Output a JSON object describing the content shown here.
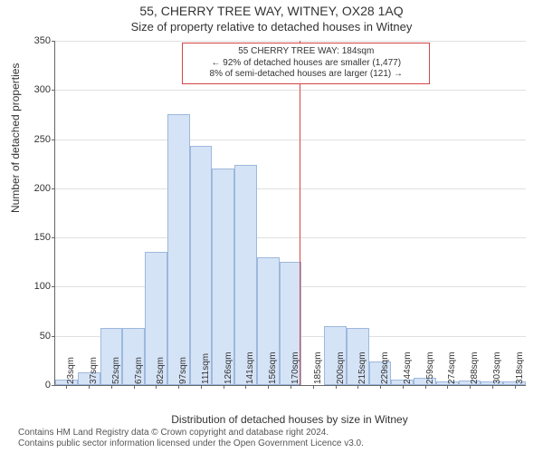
{
  "title_main": "55, CHERRY TREE WAY, WITNEY, OX28 1AQ",
  "title_sub": "Size of property relative to detached houses in Witney",
  "chart": {
    "type": "histogram",
    "ylabel": "Number of detached properties",
    "xlabel": "Distribution of detached houses by size in Witney",
    "ylim": [
      0,
      350
    ],
    "ytick_step": 50,
    "background_color": "#ffffff",
    "grid_color": "#e0e0e0",
    "axis_color": "#666666",
    "bar_fill": "#d5e3f6",
    "bar_border": "#9db8dd",
    "marker_color": "#d64545",
    "marker_at": 184,
    "x_start": 23,
    "x_step": 14.75,
    "x_ticks": [
      "23sqm",
      "37sqm",
      "52sqm",
      "67sqm",
      "82sqm",
      "97sqm",
      "111sqm",
      "126sqm",
      "141sqm",
      "156sqm",
      "170sqm",
      "185sqm",
      "200sqm",
      "215sqm",
      "229sqm",
      "244sqm",
      "259sqm",
      "274sqm",
      "288sqm",
      "303sqm",
      "318sqm"
    ],
    "values": [
      6,
      13,
      58,
      58,
      135,
      275,
      243,
      220,
      224,
      130,
      125,
      0,
      60,
      58,
      24,
      6,
      7,
      4,
      5,
      4,
      4
    ],
    "info_box": {
      "line1": "55 CHERRY TREE WAY: 184sqm",
      "line2": "← 92% of detached houses are smaller (1,477)",
      "line3": "8% of semi-detached houses are larger (121) →"
    }
  },
  "credits": {
    "line1": "Contains HM Land Registry data © Crown copyright and database right 2024.",
    "line2": "Contains public sector information licensed under the Open Government Licence v3.0."
  },
  "fonts": {
    "title": 14,
    "subtitle": 13,
    "axis_label": 12,
    "tick": 11,
    "xtick": 10,
    "credits": 10,
    "info": 10
  }
}
